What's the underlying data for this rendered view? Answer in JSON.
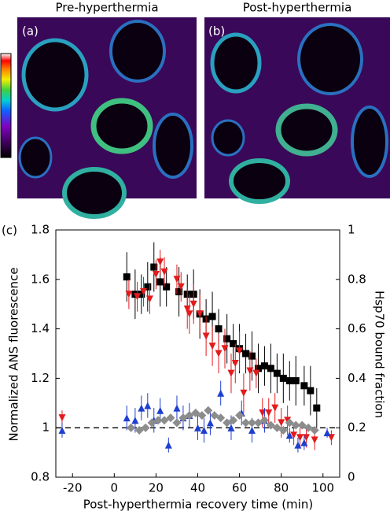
{
  "images": [
    {
      "title": "Pre-hyperthermia",
      "label": "(a)"
    },
    {
      "title": "Post-hyperthermia",
      "label": "(b)"
    }
  ],
  "chart_data": {
    "type": "scatter",
    "panel_label": "(c)",
    "x_label": "Post-hyperthermia recovery time (min)",
    "y_label": "Normalized ANS fluorescence",
    "y2_label": "Hsp70 bound fraction",
    "xlim": [
      -28,
      108
    ],
    "xticks": [
      -20,
      0,
      20,
      40,
      60,
      80,
      100
    ],
    "ylim": [
      0.8,
      1.8
    ],
    "yticks": [
      0.8,
      1.0,
      1.2,
      1.4,
      1.6,
      1.8
    ],
    "y2lim": [
      0,
      1
    ],
    "y2ticks": [
      0,
      0.2,
      0.4,
      0.6,
      0.8,
      1
    ],
    "reference_line": 1.0,
    "series": [
      {
        "marker": "square",
        "color": "#000000",
        "x": [
          6,
          10,
          13,
          16,
          19,
          22,
          25,
          31,
          35,
          38,
          41,
          44,
          47,
          50,
          54,
          57,
          60,
          63,
          66,
          69,
          72,
          75,
          78,
          81,
          84,
          87,
          91,
          94,
          97
        ],
        "values": [
          1.61,
          1.54,
          1.54,
          1.57,
          1.65,
          1.59,
          1.57,
          1.55,
          1.54,
          1.54,
          1.46,
          1.44,
          1.45,
          1.4,
          1.36,
          1.34,
          1.32,
          1.3,
          1.29,
          1.24,
          1.25,
          1.24,
          1.22,
          1.2,
          1.19,
          1.19,
          1.17,
          1.15,
          1.08
        ],
        "errors": [
          0.1,
          0.1,
          0.08,
          0.1,
          0.1,
          0.1,
          0.08,
          0.1,
          0.08,
          0.1,
          0.1,
          0.08,
          0.1,
          0.08,
          0.1,
          0.08,
          0.1,
          0.08,
          0.1,
          0.1,
          0.08,
          0.1,
          0.08,
          0.1,
          0.08,
          0.1,
          0.08,
          0.1,
          0.08
        ]
      },
      {
        "marker": "triangle-down",
        "color": "#e41a1c",
        "x": [
          -25,
          7,
          11,
          14,
          17,
          20,
          22,
          24,
          30,
          32,
          35,
          36,
          38,
          41,
          44,
          47,
          50,
          53,
          56,
          58,
          60,
          62,
          65,
          68,
          71,
          74,
          77,
          80,
          83,
          86,
          89,
          92,
          96,
          104
        ],
        "values": [
          1.04,
          1.54,
          1.53,
          1.55,
          1.52,
          1.62,
          1.67,
          1.63,
          1.6,
          1.57,
          1.48,
          1.46,
          1.5,
          1.46,
          1.37,
          1.33,
          1.3,
          1.32,
          1.22,
          1.26,
          1.31,
          1.14,
          1.23,
          1.22,
          1.06,
          1.06,
          1.08,
          1.02,
          1.03,
          0.97,
          0.96,
          0.96,
          0.95,
          0.96
        ],
        "errors": [
          0.03,
          0.06,
          0.06,
          0.06,
          0.06,
          0.06,
          0.05,
          0.06,
          0.06,
          0.06,
          0.08,
          0.08,
          0.08,
          0.08,
          0.08,
          0.08,
          0.08,
          0.08,
          0.08,
          0.08,
          0.08,
          0.08,
          0.08,
          0.06,
          0.06,
          0.06,
          0.06,
          0.06,
          0.06,
          0.04,
          0.04,
          0.04,
          0.04,
          0.03
        ]
      },
      {
        "marker": "triangle-up",
        "color": "#1f3fd0",
        "x": [
          -25,
          6,
          10,
          13,
          16,
          19,
          22,
          26,
          30,
          33,
          36,
          40,
          43,
          46,
          51,
          56,
          61,
          66,
          72,
          84,
          88,
          91,
          102
        ],
        "values": [
          0.99,
          1.04,
          1.03,
          1.08,
          1.09,
          1.03,
          1.07,
          0.93,
          1.08,
          1.04,
          1.05,
          1.0,
          0.99,
          1.02,
          1.14,
          1.0,
          1.06,
          0.99,
          1.03,
          0.97,
          0.93,
          0.94,
          0.98
        ],
        "errors": [
          0.03,
          0.05,
          0.05,
          0.05,
          0.05,
          0.05,
          0.05,
          0.03,
          0.05,
          0.05,
          0.05,
          0.05,
          0.05,
          0.05,
          0.05,
          0.05,
          0.05,
          0.05,
          0.05,
          0.03,
          0.03,
          0.03,
          0.02
        ]
      },
      {
        "marker": "diamond",
        "color": "#8c8c8c",
        "x": [
          8,
          12,
          15,
          18,
          21,
          24,
          27,
          30,
          33,
          36,
          39,
          42,
          45,
          48,
          51,
          54,
          57,
          60,
          63,
          66,
          69,
          72,
          75,
          78,
          81,
          84,
          87,
          90,
          93,
          96
        ],
        "values": [
          1.0,
          0.99,
          1.0,
          1.02,
          1.03,
          1.03,
          1.04,
          1.02,
          1.04,
          1.05,
          1.06,
          1.05,
          1.07,
          1.05,
          1.04,
          1.02,
          1.03,
          1.05,
          1.02,
          1.02,
          1.02,
          1.03,
          1.01,
          1.0,
          0.99,
          1.02,
          1.01,
          1.01,
          1.0,
          0.99
        ]
      }
    ]
  }
}
